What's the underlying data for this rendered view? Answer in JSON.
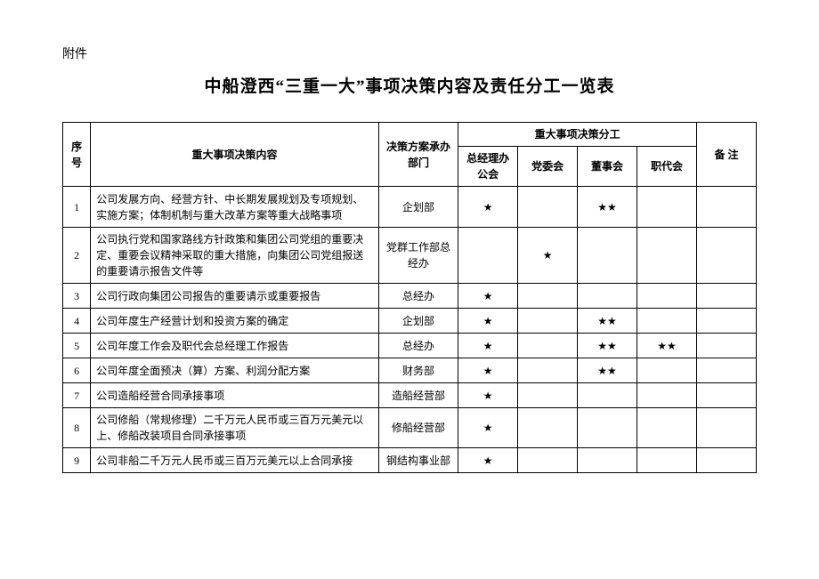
{
  "prefix": "附件",
  "title": "中船澄西“三重一大”事项决策内容及责任分工一览表",
  "header": {
    "no": "序号",
    "content": "重大事项决策内容",
    "dept": "决策方案承办部门",
    "division_group": "重大事项决策分工",
    "div1": "总经理办公会",
    "div2": "党委会",
    "div3": "董事会",
    "div4": "职代会",
    "note": "备 注"
  },
  "marks": {
    "star1": "★",
    "star2": "★★"
  },
  "rows": [
    {
      "no": "1",
      "content": "公司发展方向、经营方针、中长期发展规划及专项规划、实施方案；体制机制与重大改革方案等重大战略事项",
      "dept": "企划部",
      "c1": "★",
      "c2": "",
      "c3": "★★",
      "c4": "",
      "note": ""
    },
    {
      "no": "2",
      "content": "公司执行党和国家路线方针政策和集团公司党组的重要决定、重要会议精神采取的重大措施，向集团公司党组报送的重要请示报告文件等",
      "dept": "党群工作部总经办",
      "c1": "",
      "c2": "★",
      "c3": "",
      "c4": "",
      "note": ""
    },
    {
      "no": "3",
      "content": "公司行政向集团公司报告的重要请示或重要报告",
      "dept": "总经办",
      "c1": "★",
      "c2": "",
      "c3": "",
      "c4": "",
      "note": ""
    },
    {
      "no": "4",
      "content": "公司年度生产经营计划和投资方案的确定",
      "dept": "企划部",
      "c1": "★",
      "c2": "",
      "c3": "★★",
      "c4": "",
      "note": ""
    },
    {
      "no": "5",
      "content": "公司年度工作会及职代会总经理工作报告",
      "dept": "总经办",
      "c1": "★",
      "c2": "",
      "c3": "★★",
      "c4": "★★",
      "note": ""
    },
    {
      "no": "6",
      "content": "公司年度全面预决（算）方案、利润分配方案",
      "dept": "财务部",
      "c1": "★",
      "c2": "",
      "c3": "★★",
      "c4": "",
      "note": ""
    },
    {
      "no": "7",
      "content": "公司造船经营合同承接事项",
      "dept": "造船经营部",
      "c1": "★",
      "c2": "",
      "c3": "",
      "c4": "",
      "note": ""
    },
    {
      "no": "8",
      "content": "公司修船（常规修理）二千万元人民币或三百万元美元以上、修船改装项目合同承接事项",
      "dept": "修船经营部",
      "c1": "★",
      "c2": "",
      "c3": "",
      "c4": "",
      "note": ""
    },
    {
      "no": "9",
      "content": "公司非船二千万元人民币或三百万元美元以上合同承接",
      "dept": "钢结构事业部",
      "c1": "★",
      "c2": "",
      "c3": "",
      "c4": "",
      "note": ""
    }
  ]
}
